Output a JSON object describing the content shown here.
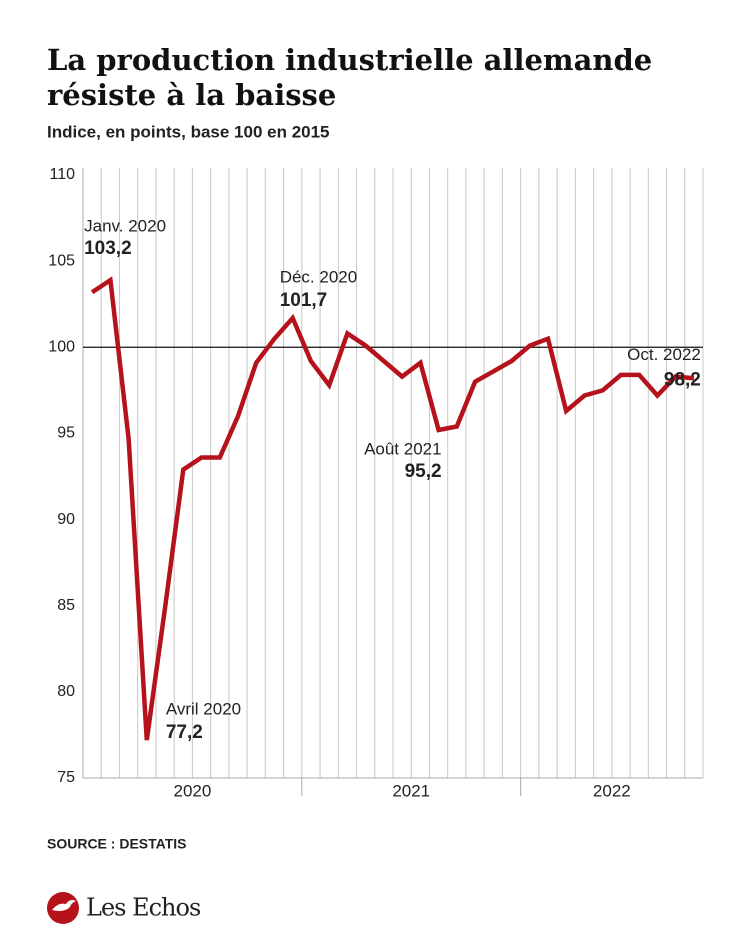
{
  "chart_data": {
    "type": "line",
    "title": [
      "La production industrielle allemande",
      "résiste à la baisse"
    ],
    "subtitle": "Indice, en points, base 100 en 2015",
    "source": "SOURCE : DESTATIS",
    "brand": "Les Echos",
    "categories": [
      null,
      null,
      null,
      null,
      null,
      null,
      null,
      null,
      null,
      null,
      null,
      null,
      null,
      null,
      null,
      null,
      null,
      null,
      null,
      null,
      null,
      null,
      null,
      null,
      null,
      null,
      null,
      null,
      null,
      null,
      null,
      null,
      null,
      null
    ],
    "year_labels": [
      "2020",
      "2021",
      "2022"
    ],
    "series": [
      {
        "name": "Production industrielle",
        "color": "#b5121b",
        "values": [
          103.2,
          103.9,
          94.7,
          77.2,
          84.9,
          92.9,
          93.6,
          93.6,
          96.0,
          99.1,
          100.5,
          101.7,
          99.2,
          97.8,
          100.8,
          100.1,
          99.2,
          98.3,
          99.1,
          95.2,
          95.4,
          98.0,
          98.6,
          99.2,
          100.1,
          100.5,
          96.3,
          97.2,
          97.5,
          98.4,
          98.4,
          97.2,
          98.3,
          98.2
        ],
        "value_labels": [
          "103,2",
          null,
          null,
          "77,2",
          null,
          null,
          null,
          null,
          null,
          null,
          null,
          "101,7",
          null,
          null,
          null,
          null,
          null,
          null,
          null,
          "95,2",
          null,
          null,
          null,
          null,
          null,
          null,
          null,
          null,
          null,
          null,
          null,
          null,
          null,
          "98,2"
        ],
        "value_label_titles": [
          "Janv. 2020",
          null,
          null,
          "Avril 2020",
          null,
          null,
          null,
          null,
          null,
          null,
          null,
          "Déc. 2020",
          null,
          null,
          null,
          null,
          null,
          null,
          null,
          "Août 2021",
          null,
          null,
          null,
          null,
          null,
          null,
          null,
          null,
          null,
          null,
          null,
          null,
          null,
          "Oct. 2022"
        ]
      }
    ],
    "ylim": [
      75,
      110
    ],
    "yticks": [
      75,
      80,
      85,
      90,
      95,
      100,
      105,
      110
    ],
    "reference_line": 100,
    "grid": "x"
  }
}
